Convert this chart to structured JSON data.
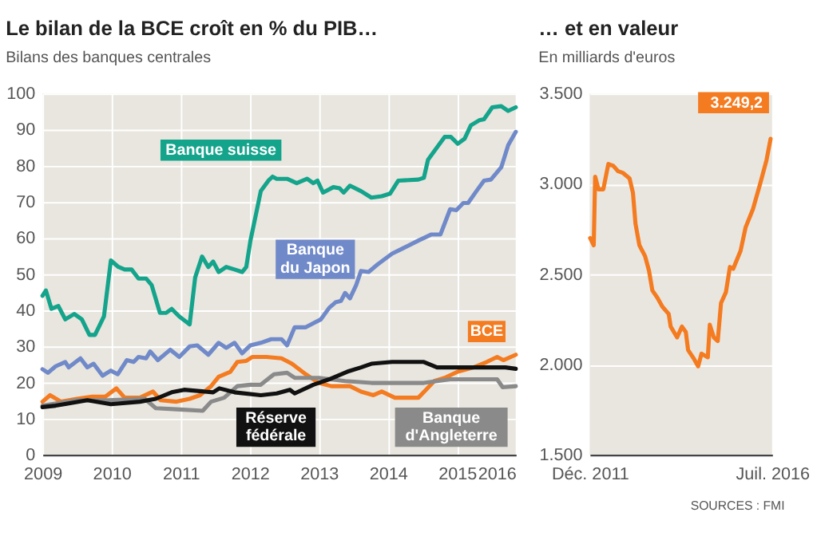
{
  "chart_data": [
    {
      "type": "line",
      "title": "Le bilan de la BCE croît en % du PIB…",
      "subtitle": "Bilans des banques centrales",
      "xlim": [
        2009,
        2015.85
      ],
      "xticks": [
        2009,
        2010,
        2011,
        2012,
        2013,
        2014,
        2015,
        {
          "value": 2015.85,
          "label": "2016"
        }
      ],
      "ylim": [
        0,
        100
      ],
      "yticks": [
        0,
        10,
        20,
        30,
        40,
        50,
        60,
        70,
        80,
        90,
        100
      ],
      "grid": true,
      "line_style": "solid",
      "series": [
        {
          "name": "Banque suisse",
          "color": "#14a38b",
          "x": [
            2009.0,
            2009.05,
            2009.13,
            2009.23,
            2009.33,
            2009.46,
            2009.57,
            2009.68,
            2009.76,
            2009.89,
            2009.99,
            2010.1,
            2010.19,
            2010.29,
            2010.39,
            2010.5,
            2010.58,
            2010.7,
            2010.79,
            2010.87,
            2010.98,
            2011.13,
            2011.21,
            2011.31,
            2011.4,
            2011.47,
            2011.55,
            2011.66,
            2011.78,
            2011.89,
            2011.95,
            2012.01,
            2012.16,
            2012.27,
            2012.33,
            2012.39,
            2012.54,
            2012.68,
            2012.83,
            2012.92,
            2012.98,
            2013.06,
            2013.21,
            2013.3,
            2013.36,
            2013.45,
            2013.61,
            2013.76,
            2013.91,
            2014.03,
            2014.15,
            2014.44,
            2014.52,
            2014.58,
            2014.71,
            2014.82,
            2014.91,
            2015.01,
            2015.11,
            2015.2,
            2015.32,
            2015.39,
            2015.51,
            2015.64,
            2015.74,
            2015.85
          ],
          "values": [
            44.0,
            45.5,
            40.4,
            41.2,
            37.5,
            39.0,
            37.5,
            33.2,
            33.2,
            38.3,
            53.8,
            52.0,
            51.3,
            51.3,
            48.8,
            48.8,
            47.0,
            39.3,
            39.3,
            40.4,
            38.3,
            36.1,
            49.1,
            54.9,
            52.0,
            53.5,
            50.6,
            52.0,
            51.3,
            50.6,
            52.0,
            59.3,
            73.0,
            75.9,
            77.0,
            76.4,
            76.4,
            75.2,
            76.4,
            75.2,
            75.9,
            72.6,
            74.1,
            73.8,
            72.6,
            74.5,
            73.0,
            71.2,
            71.6,
            72.3,
            75.9,
            76.2,
            76.7,
            81.7,
            85.1,
            88.0,
            88.0,
            86.1,
            87.5,
            91.2,
            92.6,
            92.9,
            96.2,
            96.5,
            95.2,
            96.2
          ]
        },
        {
          "name": "Banque du Japon",
          "color": "#7089c9",
          "x": [
            2009.0,
            2009.08,
            2009.19,
            2009.33,
            2009.38,
            2009.55,
            2009.65,
            2009.74,
            2009.87,
            2009.99,
            2010.09,
            2010.22,
            2010.32,
            2010.39,
            2010.5,
            2010.56,
            2010.67,
            2010.85,
            2010.98,
            2011.13,
            2011.24,
            2011.4,
            2011.55,
            2011.66,
            2011.78,
            2011.89,
            2012.01,
            2012.16,
            2012.31,
            2012.46,
            2012.54,
            2012.65,
            2012.81,
            2012.92,
            2013.03,
            2013.15,
            2013.24,
            2013.32,
            2013.38,
            2013.45,
            2013.54,
            2013.61,
            2013.72,
            2013.85,
            2014.06,
            2014.21,
            2014.44,
            2014.63,
            2014.76,
            2014.9,
            2014.99,
            2015.09,
            2015.16,
            2015.28,
            2015.39,
            2015.49,
            2015.64,
            2015.74,
            2015.85
          ],
          "values": [
            23.7,
            22.7,
            24.5,
            25.7,
            24.2,
            26.7,
            24.2,
            25.2,
            21.9,
            23.3,
            22.3,
            26.2,
            25.7,
            27.1,
            26.7,
            28.6,
            26.2,
            29.1,
            27.1,
            30.0,
            30.3,
            27.7,
            31.0,
            29.6,
            31.0,
            28.1,
            30.3,
            31.0,
            32.0,
            32.0,
            30.3,
            35.3,
            35.3,
            36.4,
            37.5,
            40.7,
            42.2,
            42.6,
            44.8,
            43.3,
            47.0,
            50.9,
            50.6,
            52.7,
            55.7,
            57.1,
            59.3,
            61.0,
            61.0,
            68.0,
            67.7,
            69.7,
            69.7,
            73.0,
            75.9,
            76.2,
            79.6,
            85.7,
            89.4
          ]
        },
        {
          "name": "BCE",
          "color": "#f47b20",
          "x": [
            2009.0,
            2009.11,
            2009.27,
            2009.5,
            2009.72,
            2009.91,
            2010.07,
            2010.19,
            2010.41,
            2010.6,
            2010.71,
            2010.94,
            2011.13,
            2011.28,
            2011.44,
            2011.55,
            2011.72,
            2011.82,
            2011.95,
            2012.04,
            2012.24,
            2012.46,
            2012.61,
            2012.81,
            2013.0,
            2013.18,
            2013.45,
            2013.61,
            2013.79,
            2013.91,
            2014.1,
            2014.44,
            2014.55,
            2014.67,
            2014.82,
            2015.01,
            2015.24,
            2015.43,
            2015.58,
            2015.67,
            2015.85
          ],
          "values": [
            14.7,
            16.5,
            14.7,
            15.5,
            16.1,
            16.1,
            18.4,
            15.8,
            15.8,
            17.5,
            15.1,
            14.7,
            15.5,
            16.5,
            19.0,
            21.6,
            23.0,
            25.7,
            26.0,
            27.1,
            27.1,
            26.7,
            25.2,
            22.3,
            19.9,
            19.0,
            19.0,
            17.5,
            16.5,
            17.5,
            15.8,
            15.8,
            18.0,
            20.4,
            21.3,
            23.0,
            24.2,
            25.7,
            27.1,
            26.2,
            27.7
          ]
        },
        {
          "name": "Banque d'Angleterre",
          "color": "#8a8a8a",
          "x": [
            2009.0,
            2009.5,
            2009.95,
            2010.48,
            2010.64,
            2010.94,
            2011.32,
            2011.44,
            2011.63,
            2011.82,
            2012.01,
            2012.16,
            2012.35,
            2012.54,
            2012.65,
            2013.0,
            2013.38,
            2013.76,
            2014.52,
            2014.9,
            2015.58,
            2015.66,
            2015.85
          ],
          "values": [
            13.6,
            15.1,
            15.1,
            15.5,
            12.9,
            12.6,
            12.2,
            14.7,
            15.8,
            19.0,
            19.4,
            19.4,
            22.3,
            22.7,
            21.3,
            21.3,
            20.4,
            19.9,
            19.9,
            20.9,
            20.9,
            18.7,
            19.0
          ]
        },
        {
          "name": "Réserve fédérale",
          "color": "#111111",
          "x": [
            2009.0,
            2009.19,
            2009.65,
            2009.99,
            2010.41,
            2010.64,
            2010.87,
            2011.05,
            2011.47,
            2011.56,
            2011.78,
            2012.16,
            2012.39,
            2012.58,
            2012.65,
            2012.92,
            2013.15,
            2013.41,
            2013.61,
            2013.76,
            2014.06,
            2014.52,
            2014.71,
            2015.7,
            2015.85
          ],
          "values": [
            13.2,
            13.6,
            15.1,
            14.0,
            14.7,
            15.5,
            17.3,
            18.0,
            17.3,
            18.4,
            17.3,
            16.5,
            17.0,
            18.0,
            17.0,
            19.4,
            20.9,
            23.0,
            24.2,
            25.2,
            25.7,
            25.7,
            24.2,
            24.2,
            23.8
          ]
        }
      ]
    },
    {
      "type": "line",
      "title": "… et en valeur",
      "subtitle": "En milliards d'euros",
      "xlim": [
        "2011-12-01",
        "2016-07-01"
      ],
      "xticks": [
        {
          "value": "2011-12-01",
          "label": "Déc. 2011"
        },
        {
          "value": "2016-07-01",
          "label": "Juil. 2016"
        }
      ],
      "ylim": [
        1500,
        3500
      ],
      "yticks": [
        {
          "value": 1500,
          "label": "1.500"
        },
        {
          "value": 2000,
          "label": "2.000"
        },
        {
          "value": 2500,
          "label": "2.500"
        },
        {
          "value": 3000,
          "label": "3.000"
        },
        {
          "value": 3500,
          "label": "3.500"
        }
      ],
      "grid": "y",
      "line_style": "solid",
      "annotations": [
        "SOURCES : FMI"
      ],
      "series": [
        {
          "color": "#f47b20",
          "x": [
            "2011-12-05",
            "2012-01-07",
            "2012-01-20",
            "2012-02-20",
            "2012-04-04",
            "2012-05-20",
            "2012-07-04",
            "2012-08-18",
            "2012-10-03",
            "2012-12-01",
            "2013-01-01",
            "2013-01-24",
            "2013-03-01",
            "2013-04-22",
            "2013-05-28",
            "2013-06-28",
            "2013-08-13",
            "2013-09-28",
            "2013-11-25",
            "2013-12-13",
            "2014-02-10",
            "2014-03-26",
            "2014-05-01",
            "2014-05-22",
            "2014-07-16",
            "2014-08-22",
            "2014-09-22",
            "2014-11-19",
            "2014-12-07",
            "2015-01-13",
            "2015-02-18",
            "2015-03-20",
            "2015-05-04",
            "2015-06-10",
            "2015-07-10",
            "2015-09-16",
            "2015-11-01",
            "2016-01-07",
            "2016-03-13",
            "2016-05-10",
            "2016-06-17"
          ],
          "values": [
            2700,
            2660,
            3040,
            2970,
            2970,
            3110,
            3100,
            3070,
            3060,
            3030,
            2950,
            2780,
            2660,
            2600,
            2520,
            2410,
            2370,
            2320,
            2280,
            2210,
            2150,
            2210,
            2180,
            2080,
            2030,
            1990,
            2060,
            2040,
            2220,
            2150,
            2130,
            2340,
            2400,
            2540,
            2530,
            2630,
            2760,
            2860,
            3000,
            3130,
            3249.2
          ],
          "value_labels": [
            null,
            null,
            null,
            null,
            null,
            null,
            null,
            null,
            null,
            null,
            null,
            null,
            null,
            null,
            null,
            null,
            null,
            null,
            null,
            null,
            null,
            null,
            null,
            null,
            null,
            null,
            null,
            null,
            null,
            null,
            null,
            null,
            null,
            null,
            null,
            null,
            null,
            null,
            null,
            null,
            "3.249,2"
          ]
        }
      ]
    }
  ]
}
